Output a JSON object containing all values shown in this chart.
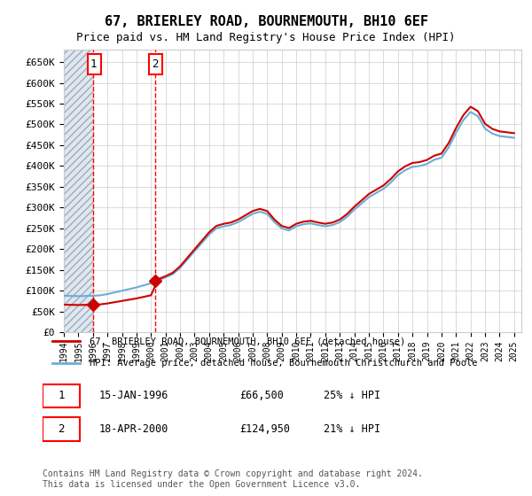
{
  "title": "67, BRIERLEY ROAD, BOURNEMOUTH, BH10 6EF",
  "subtitle": "Price paid vs. HM Land Registry's House Price Index (HPI)",
  "xlabel": "",
  "ylabel": "",
  "ylim": [
    0,
    680000
  ],
  "yticks": [
    0,
    50000,
    100000,
    150000,
    200000,
    250000,
    300000,
    350000,
    400000,
    450000,
    500000,
    550000,
    600000,
    650000
  ],
  "ytick_labels": [
    "£0",
    "£50K",
    "£100K",
    "£150K",
    "£200K",
    "£250K",
    "£300K",
    "£350K",
    "£400K",
    "£450K",
    "£500K",
    "£550K",
    "£600K",
    "£650K"
  ],
  "hpi_color": "#6baed6",
  "price_color": "#cc0000",
  "sale1_date": 1996.04,
  "sale1_price": 66500,
  "sale2_date": 2000.29,
  "sale2_price": 124950,
  "sale1_label": "1",
  "sale2_label": "2",
  "legend_line1": "67, BRIERLEY ROAD, BOURNEMOUTH, BH10 6EF (detached house)",
  "legend_line2": "HPI: Average price, detached house, Bournemouth Christchurch and Poole",
  "table_row1": "1    15-JAN-1996    £66,500    25% ↓ HPI",
  "table_row2": "2    18-APR-2000    £124,950    21% ↓ HPI",
  "footnote": "Contains HM Land Registry data © Crown copyright and database right 2024.\nThis data is licensed under the Open Government Licence v3.0.",
  "background_hatch_color": "#dce8f5",
  "vline1_x": 1996.04,
  "vline2_x": 2000.29,
  "xlim_left": 1994.0,
  "xlim_right": 2025.5
}
